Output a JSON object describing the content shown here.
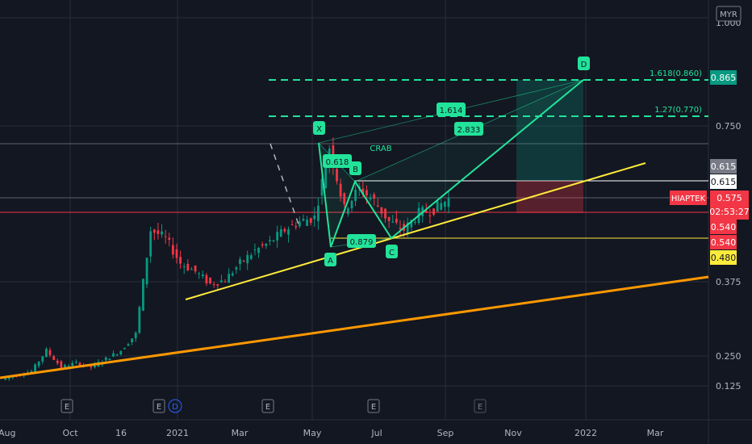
{
  "price_axis": {
    "currency": "MYR",
    "ticks": [
      "0.125",
      "0.250",
      "0.375",
      "0.750"
    ],
    "top_tick_partial": "1.000"
  },
  "time_axis": {
    "ticks": [
      "Aug",
      "Oct",
      "16",
      "2021",
      "Mar",
      "May",
      "Jul",
      "Sep",
      "Nov",
      "2022",
      "Mar"
    ]
  },
  "price_labels": [
    {
      "text": "0.865",
      "bg": "#089981",
      "fg": "#ffffff",
      "price": 0.865
    },
    {
      "text": "0.615",
      "bg": "#787b86",
      "fg": "#ffffff",
      "price": 0.627
    },
    {
      "text": "0.615",
      "bg": "#ffffff",
      "fg": "#131722",
      "price": 0.605
    },
    {
      "text": "0.575",
      "bg": "#f23645",
      "fg": "#ffffff",
      "price": 0.575
    },
    {
      "text": "02:53:27",
      "bg": "#f23645",
      "fg": "#ffffff",
      "price": 0.558
    },
    {
      "text": "0.540",
      "bg": "#f23645",
      "fg": "#ffffff",
      "price": 0.527
    },
    {
      "text": "0.540",
      "bg": "#f23645",
      "fg": "#ffffff",
      "price": 0.505
    },
    {
      "text": "0.480",
      "bg": "#ffeb3b",
      "fg": "#131722",
      "price": 0.482
    }
  ],
  "symbol_label": {
    "text": "HIAPTEK",
    "bg": "#f23645",
    "fg": "#ffffff"
  },
  "fib_levels": [
    {
      "text": "1.618(0.860)",
      "price": 0.865,
      "color": "#22e39a"
    },
    {
      "text": "1.27(0.770)",
      "price": 0.77,
      "color": "#22e39a"
    }
  ],
  "pattern": {
    "name": "CRAB",
    "points": [
      "X",
      "A",
      "B",
      "C",
      "D"
    ],
    "ratios": [
      "0.618",
      "0.879",
      "1.614",
      "2.833"
    ],
    "color": "#22e39a"
  },
  "events": [
    "E",
    "E",
    "D",
    "E",
    "E",
    "E"
  ],
  "chart_data": {
    "type": "candlestick",
    "symbol": "HIAPTEK",
    "currency": "MYR",
    "x_range": [
      "2020-08",
      "2022-03"
    ],
    "y_axis_ticks": [
      0.125,
      0.25,
      0.375,
      0.75
    ],
    "last_price": 0.575,
    "countdown": "02:53:27",
    "harmonic_pattern": {
      "name": "CRAB",
      "X": {
        "date": "2021-05",
        "price": 0.715
      },
      "A": {
        "date": "2021-05",
        "price": 0.485
      },
      "B": {
        "date": "2021-06",
        "price": 0.615
      },
      "C": {
        "date": "2021-07",
        "price": 0.5
      },
      "D": {
        "date": "2021-12",
        "price": 0.865
      },
      "ratios": {
        "XB": 0.618,
        "AC": 0.879,
        "BD": 2.833,
        "XD": 1.614
      }
    },
    "fib_targets": [
      {
        "ratio": 1.618,
        "price": 0.86
      },
      {
        "ratio": 1.27,
        "price": 0.77
      }
    ],
    "horizontal_levels": [
      0.615,
      0.54,
      0.48
    ],
    "trendlines": [
      {
        "color": "#ffeb3b",
        "from": {
          "date": "2021-01",
          "price": 0.375
        },
        "to": {
          "date": "2022-02",
          "price": 0.67
        }
      },
      {
        "color": "#ff9800",
        "from": {
          "date": "2020-08",
          "price": 0.125
        },
        "to": {
          "date": "2022-03",
          "price": 0.385
        }
      }
    ],
    "close_series": [
      0.14,
      0.15,
      0.16,
      0.21,
      0.17,
      0.18,
      0.17,
      0.19,
      0.21,
      0.25,
      0.5,
      0.48,
      0.42,
      0.4,
      0.37,
      0.38,
      0.42,
      0.45,
      0.47,
      0.5,
      0.52,
      0.53,
      0.7,
      0.55,
      0.6,
      0.57,
      0.52,
      0.5,
      0.54,
      0.55,
      0.575
    ]
  }
}
